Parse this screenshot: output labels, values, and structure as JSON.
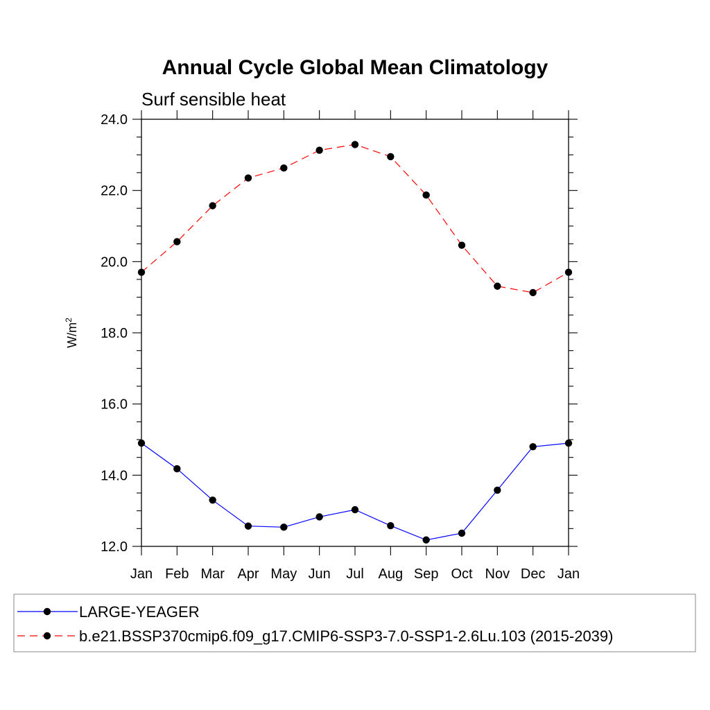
{
  "chart_data": {
    "type": "line",
    "title": "Annual Cycle Global Mean Climatology",
    "subtitle": "Surf sensible heat",
    "ylabel": "W/m",
    "ylabel_sup": "2",
    "x": [
      "Jan",
      "Feb",
      "Mar",
      "Apr",
      "May",
      "Jun",
      "Jul",
      "Aug",
      "Sep",
      "Oct",
      "Nov",
      "Dec",
      "Jan"
    ],
    "ylim": [
      12.0,
      24.0
    ],
    "yticks": [
      "12.0",
      "14.0",
      "16.0",
      "18.0",
      "20.0",
      "22.0",
      "24.0"
    ],
    "grid": false,
    "legend_position": "bottom",
    "series": [
      {
        "name": "LARGE-YEAGER",
        "color": "#0000ff",
        "style": "solid",
        "values": [
          14.9,
          14.18,
          13.3,
          12.57,
          12.54,
          12.83,
          13.03,
          12.58,
          12.18,
          12.37,
          13.58,
          14.8,
          14.9
        ]
      },
      {
        "name": "b.e21.BSSP370cmip6.f09_g17.CMIP6-SSP3-7.0-SSP1-2.6Lu.103 (2015-2039)",
        "color": "#ff0000",
        "style": "dashed",
        "values": [
          19.7,
          20.56,
          21.57,
          22.35,
          22.63,
          23.13,
          23.29,
          22.95,
          21.87,
          20.46,
          19.31,
          19.13,
          19.7
        ]
      }
    ]
  }
}
